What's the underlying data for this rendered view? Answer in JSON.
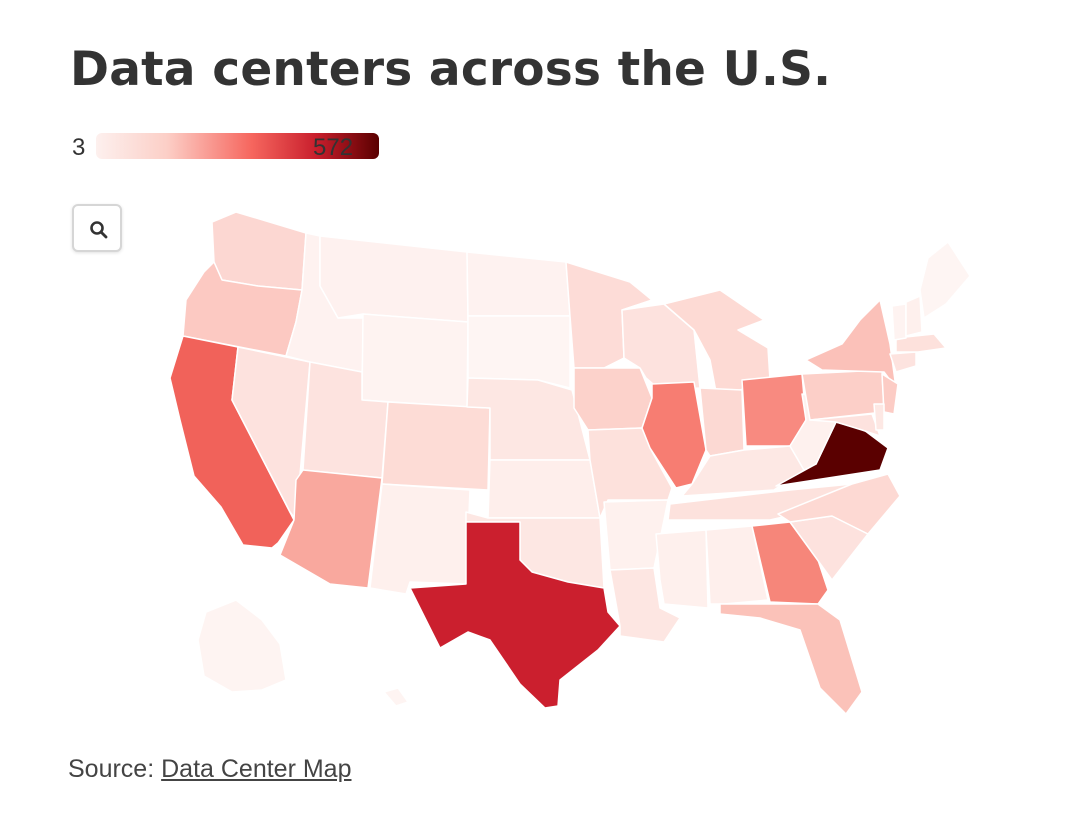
{
  "title": "Data centers across the U.S.",
  "legend": {
    "min_label": "3",
    "max_label": "572",
    "min_color": "#fdf0ee",
    "max_color": "#5a0000"
  },
  "source": {
    "prefix": "Source:",
    "link_text": "Data Center Map"
  },
  "zoom_icon": "search-icon",
  "map_data": {
    "type": "choropleth",
    "value_range": [
      3,
      572
    ],
    "regions": [
      {
        "id": "WA",
        "color": "#fcd7d2"
      },
      {
        "id": "OR",
        "color": "#fcc9c2"
      },
      {
        "id": "CA",
        "color": "#f1625a"
      },
      {
        "id": "NV",
        "color": "#fde2de"
      },
      {
        "id": "ID",
        "color": "#fef2f0"
      },
      {
        "id": "MT",
        "color": "#fef1ef"
      },
      {
        "id": "WY",
        "color": "#fef3f1"
      },
      {
        "id": "UT",
        "color": "#fde3df"
      },
      {
        "id": "AZ",
        "color": "#f9a89e"
      },
      {
        "id": "CO",
        "color": "#fddcd6"
      },
      {
        "id": "NM",
        "color": "#fef0ed"
      },
      {
        "id": "ND",
        "color": "#fef2f0"
      },
      {
        "id": "SD",
        "color": "#fef5f3"
      },
      {
        "id": "NE",
        "color": "#fde7e3"
      },
      {
        "id": "KS",
        "color": "#feeeeb"
      },
      {
        "id": "OK",
        "color": "#fde7e3"
      },
      {
        "id": "TX",
        "color": "#cb1f2e"
      },
      {
        "id": "MN",
        "color": "#fddcd7"
      },
      {
        "id": "IA",
        "color": "#fcd2cb"
      },
      {
        "id": "MO",
        "color": "#fde1dc"
      },
      {
        "id": "AR",
        "color": "#fef1ee"
      },
      {
        "id": "LA",
        "color": "#fde6e2"
      },
      {
        "id": "WI",
        "color": "#fde2de"
      },
      {
        "id": "IL",
        "color": "#f77d72"
      },
      {
        "id": "MI",
        "color": "#fddad4"
      },
      {
        "id": "IN",
        "color": "#fcd9d3"
      },
      {
        "id": "OH",
        "color": "#f88a80"
      },
      {
        "id": "KY",
        "color": "#fde8e4"
      },
      {
        "id": "TN",
        "color": "#fde2dd"
      },
      {
        "id": "MS",
        "color": "#fef0ed"
      },
      {
        "id": "AL",
        "color": "#feefec"
      },
      {
        "id": "GA",
        "color": "#f6867a"
      },
      {
        "id": "FL",
        "color": "#fbc2b9"
      },
      {
        "id": "SC",
        "color": "#fde2de"
      },
      {
        "id": "NC",
        "color": "#fdd9d3"
      },
      {
        "id": "VA",
        "color": "#5a0000"
      },
      {
        "id": "WV",
        "color": "#fef1ee"
      },
      {
        "id": "PA",
        "color": "#fccfc8"
      },
      {
        "id": "NY",
        "color": "#fbc1b9"
      },
      {
        "id": "NJ",
        "color": "#fcccc5"
      },
      {
        "id": "MD",
        "color": "#fde2de"
      },
      {
        "id": "DE",
        "color": "#fde8e4"
      },
      {
        "id": "CT",
        "color": "#fde3df"
      },
      {
        "id": "MA",
        "color": "#fde1dc"
      },
      {
        "id": "VT",
        "color": "#fef3f1"
      },
      {
        "id": "NH",
        "color": "#fef0ed"
      },
      {
        "id": "ME",
        "color": "#fef5f3"
      },
      {
        "id": "AK",
        "color": "#fef4f2"
      },
      {
        "id": "HI",
        "color": "#fef4f2"
      }
    ]
  }
}
